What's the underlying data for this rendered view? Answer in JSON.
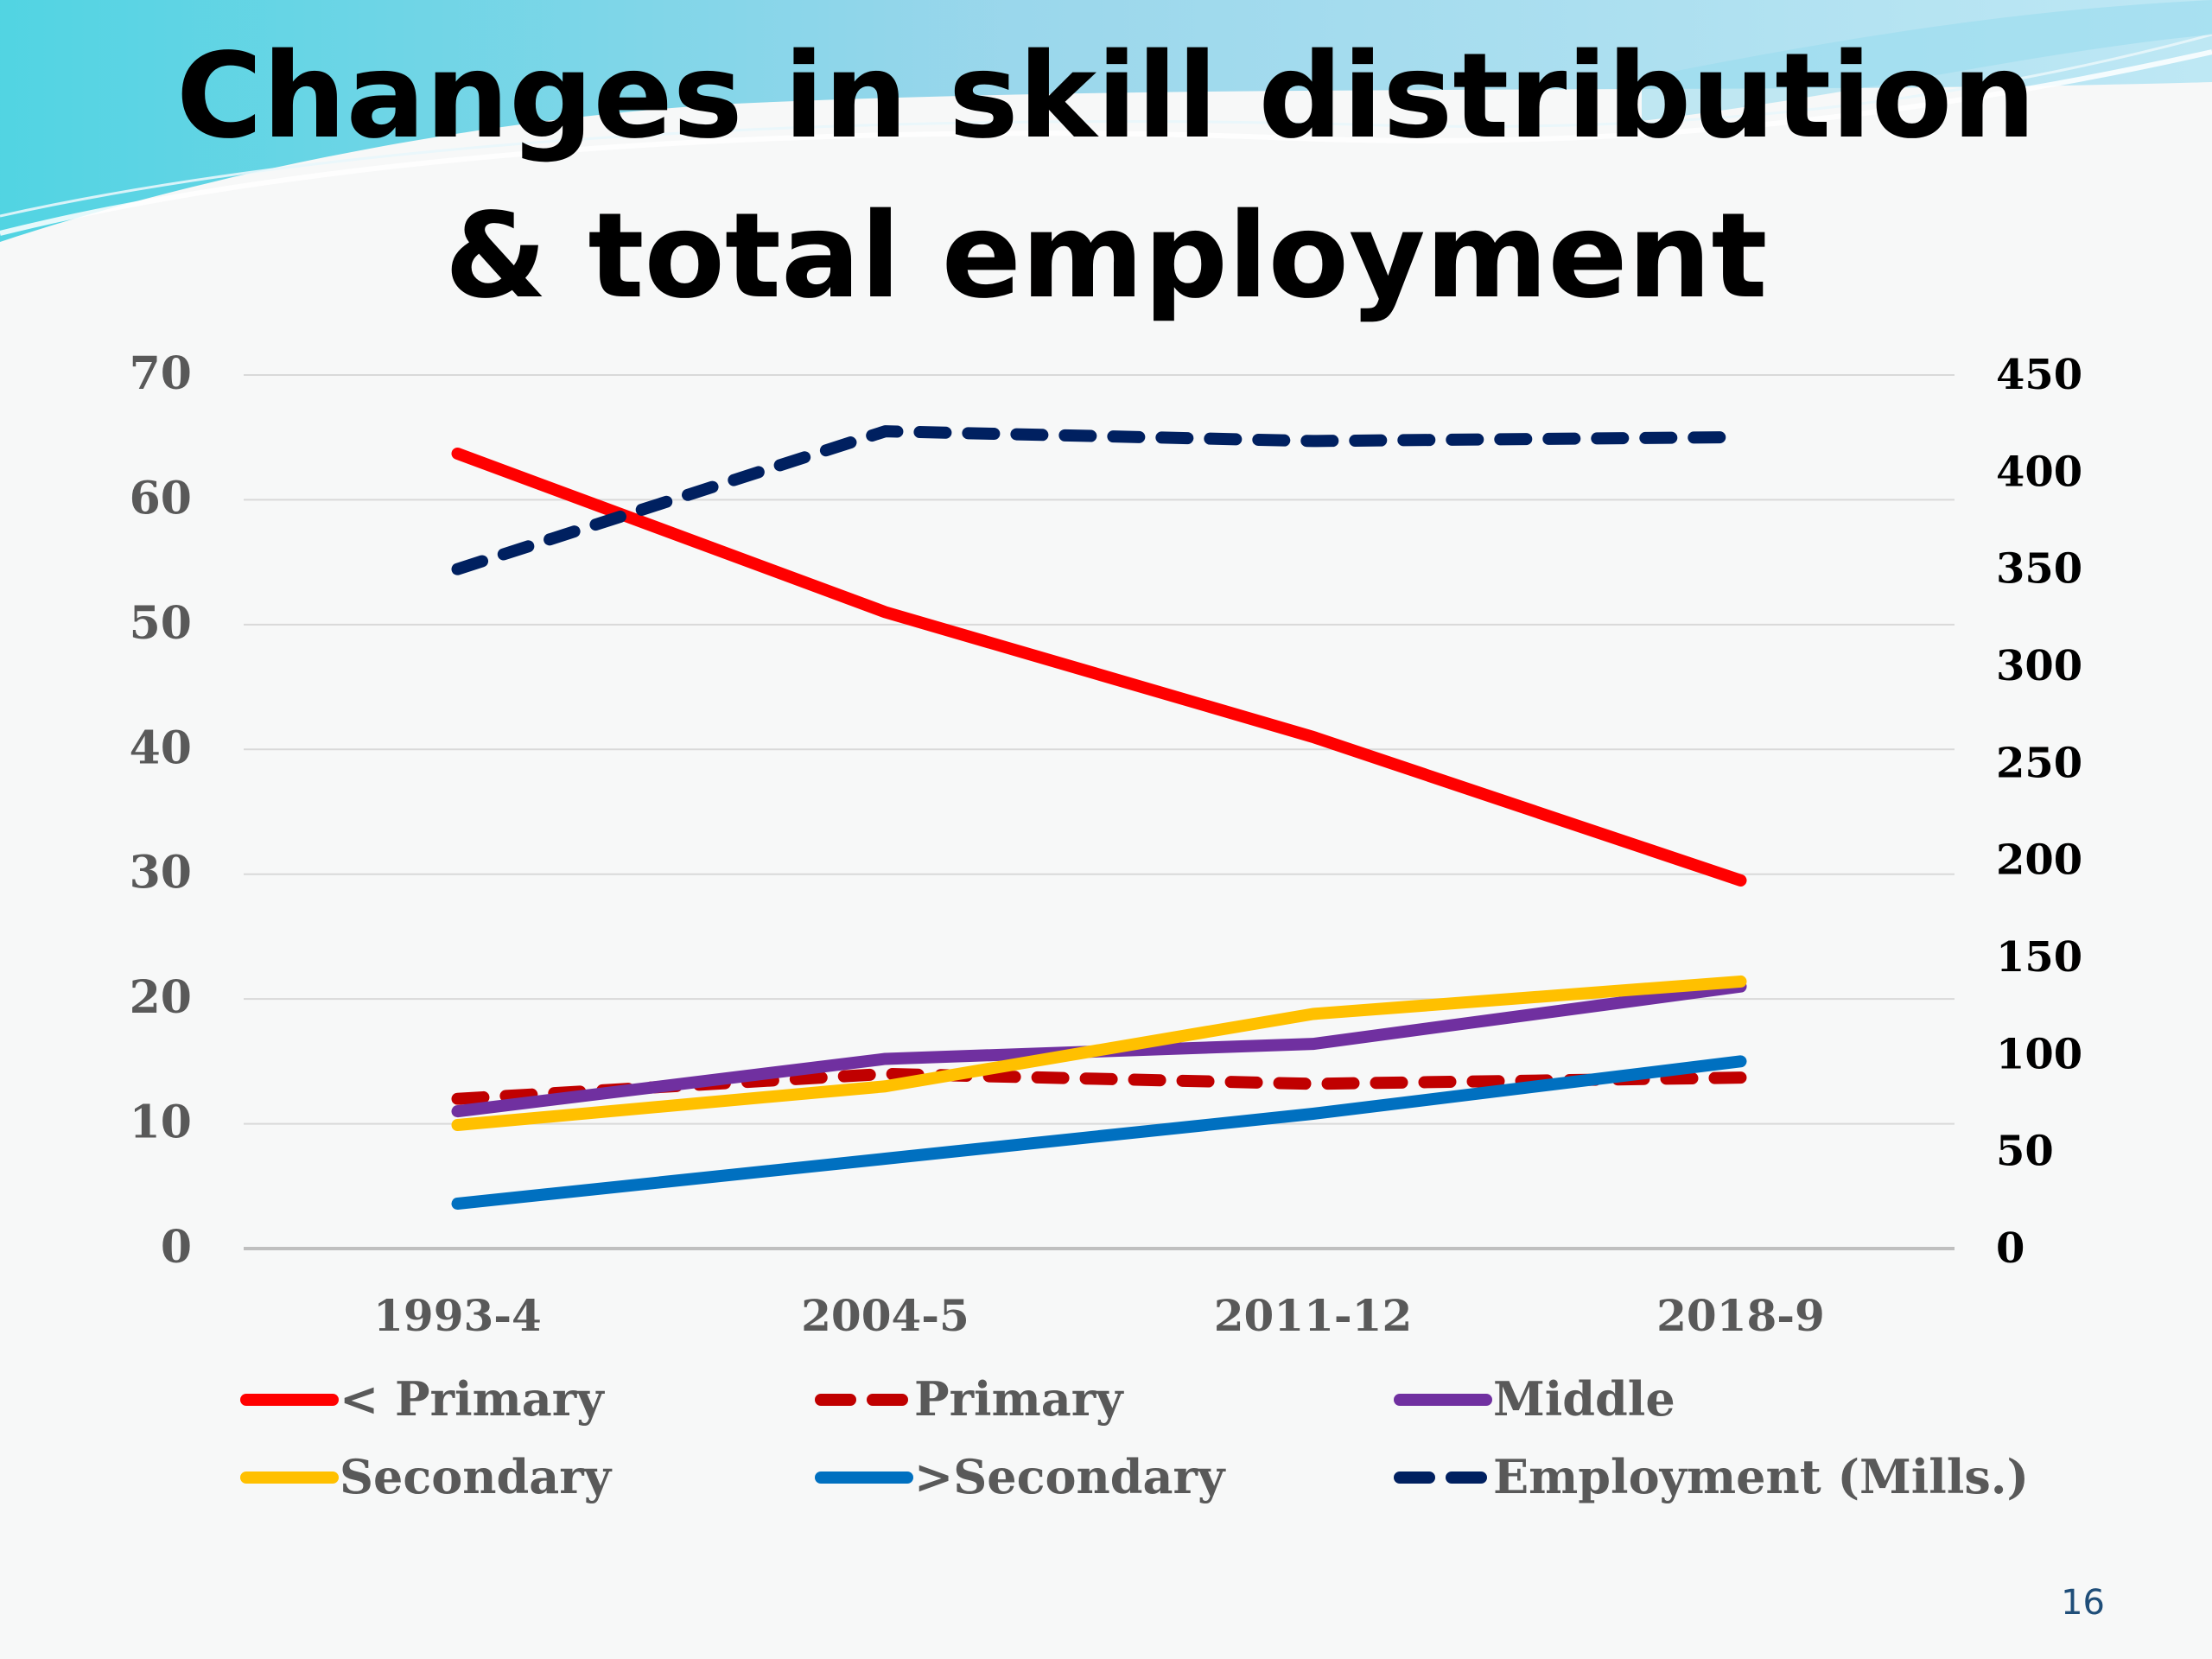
{
  "slide": {
    "title_lines": [
      "Changes in skill distribution",
      "& total employment"
    ],
    "page_number": "16"
  },
  "chart_data": {
    "type": "line",
    "title": "",
    "xlabel": "",
    "ylabel": "",
    "categories": [
      "1993-4",
      "2004-5",
      "2011-12",
      "2018-9"
    ],
    "y_left": {
      "ticks": [
        0,
        10,
        20,
        30,
        40,
        50,
        60,
        70
      ],
      "ylim": [
        0,
        70
      ]
    },
    "y_right": {
      "ticks": [
        0,
        50,
        100,
        150,
        200,
        250,
        300,
        350,
        400,
        450
      ],
      "ylim": [
        0,
        450
      ]
    },
    "grid": true,
    "legend_position": "bottom",
    "series": [
      {
        "name": "< Primary",
        "axis": "left",
        "style": "solid",
        "color": "#ff0000",
        "values": [
          63.7,
          51.0,
          41.0,
          29.5
        ]
      },
      {
        "name": "Primary",
        "axis": "left",
        "style": "dashed",
        "color": "#c00000",
        "values": [
          12.0,
          14.0,
          13.2,
          13.7
        ]
      },
      {
        "name": "Middle",
        "axis": "left",
        "style": "solid",
        "color": "#7030a0",
        "values": [
          11.0,
          15.2,
          16.4,
          21.0
        ]
      },
      {
        "name": "Secondary",
        "axis": "left",
        "style": "solid",
        "color": "#ffc000",
        "values": [
          9.9,
          13.0,
          18.8,
          21.4
        ]
      },
      {
        "name": ">Secondary",
        "axis": "left",
        "style": "solid",
        "color": "#0070c0",
        "values": [
          3.6,
          7.2,
          10.8,
          15.0
        ]
      },
      {
        "name": "Employment (Mills.)",
        "axis": "right",
        "style": "dashed",
        "color": "#002060",
        "values": [
          350,
          421,
          416,
          418
        ]
      }
    ]
  }
}
